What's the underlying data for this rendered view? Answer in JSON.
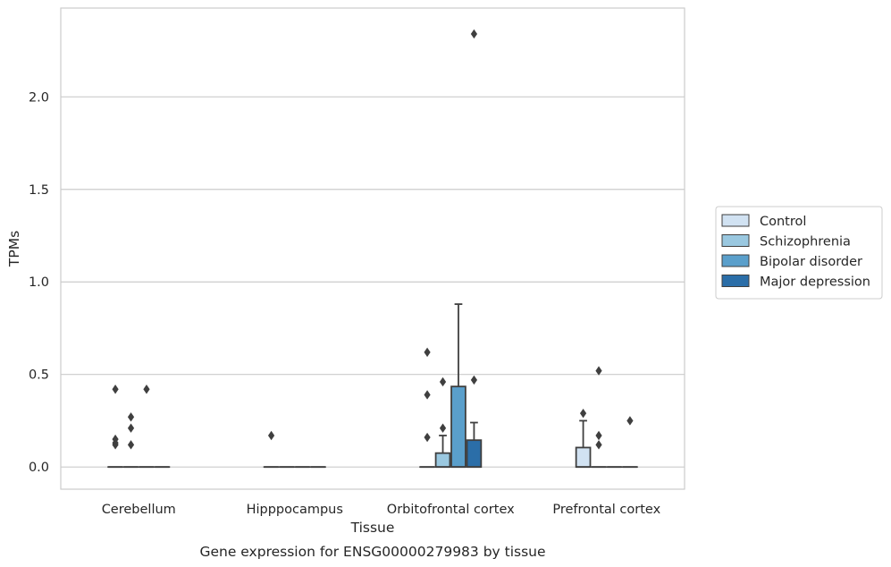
{
  "chart_data": {
    "type": "box",
    "xlabel": "Tissue",
    "ylabel": "TPMs",
    "caption": "Gene expression for ENSG00000279983 by tissue",
    "ylim": [
      -0.12,
      2.48
    ],
    "yticks": [
      "0.0",
      "0.5",
      "1.0",
      "1.5",
      "2.0"
    ],
    "ytick_values": [
      0.0,
      0.5,
      1.0,
      1.5,
      2.0
    ],
    "grid": true,
    "legend_placement": "center-right",
    "categories": [
      "Cerebellum",
      "Hipppocampus",
      "Orbitofrontal cortex",
      "Prefrontal cortex"
    ],
    "series": [
      {
        "name": "Control",
        "color": "#d1e2f2",
        "boxes": [
          {
            "q1": 0,
            "median": 0,
            "q3": 0,
            "whislo": 0,
            "whishi": 0,
            "fliers": [
              0.12,
              0.13,
              0.15,
              0.42
            ]
          },
          {
            "q1": 0,
            "median": 0,
            "q3": 0,
            "whislo": 0,
            "whishi": 0,
            "fliers": [
              0.17
            ]
          },
          {
            "q1": 0,
            "median": 0,
            "q3": 0,
            "whislo": 0,
            "whishi": 0,
            "fliers": [
              0.16,
              0.39,
              0.62
            ]
          },
          {
            "q1": 0,
            "median": 0,
            "q3": 0.105,
            "whislo": 0,
            "whishi": 0.25,
            "fliers": [
              0.29
            ]
          }
        ]
      },
      {
        "name": "Schizophrenia",
        "color": "#9ac8e0",
        "boxes": [
          {
            "q1": 0,
            "median": 0,
            "q3": 0,
            "whislo": 0,
            "whishi": 0,
            "fliers": [
              0.12,
              0.21,
              0.27
            ]
          },
          {
            "q1": 0,
            "median": 0,
            "q3": 0,
            "whislo": 0,
            "whishi": 0,
            "fliers": []
          },
          {
            "q1": 0,
            "median": 0,
            "q3": 0.075,
            "whislo": 0,
            "whishi": 0.17,
            "fliers": [
              0.21,
              0.46
            ]
          },
          {
            "q1": 0,
            "median": 0,
            "q3": 0,
            "whislo": 0,
            "whishi": 0,
            "fliers": [
              0.12,
              0.17,
              0.52
            ]
          }
        ]
      },
      {
        "name": "Bipolar disorder",
        "color": "#5a9fcb",
        "boxes": [
          {
            "q1": 0,
            "median": 0,
            "q3": 0,
            "whislo": 0,
            "whishi": 0,
            "fliers": [
              0.42
            ]
          },
          {
            "q1": 0,
            "median": 0,
            "q3": 0,
            "whislo": 0,
            "whishi": 0,
            "fliers": []
          },
          {
            "q1": 0,
            "median": 0,
            "q3": 0.435,
            "whislo": 0,
            "whishi": 0.88,
            "fliers": []
          },
          {
            "q1": 0,
            "median": 0,
            "q3": 0,
            "whislo": 0,
            "whishi": 0,
            "fliers": []
          }
        ]
      },
      {
        "name": "Major depression",
        "color": "#2b6ea8",
        "boxes": [
          {
            "q1": 0,
            "median": 0,
            "q3": 0,
            "whislo": 0,
            "whishi": 0,
            "fliers": []
          },
          {
            "q1": 0,
            "median": 0,
            "q3": 0,
            "whislo": 0,
            "whishi": 0,
            "fliers": []
          },
          {
            "q1": 0,
            "median": 0,
            "q3": 0.145,
            "whislo": 0,
            "whishi": 0.24,
            "fliers": [
              0.47,
              2.34
            ]
          },
          {
            "q1": 0,
            "median": 0,
            "q3": 0,
            "whislo": 0,
            "whishi": 0,
            "fliers": [
              0.25
            ]
          }
        ]
      }
    ]
  }
}
